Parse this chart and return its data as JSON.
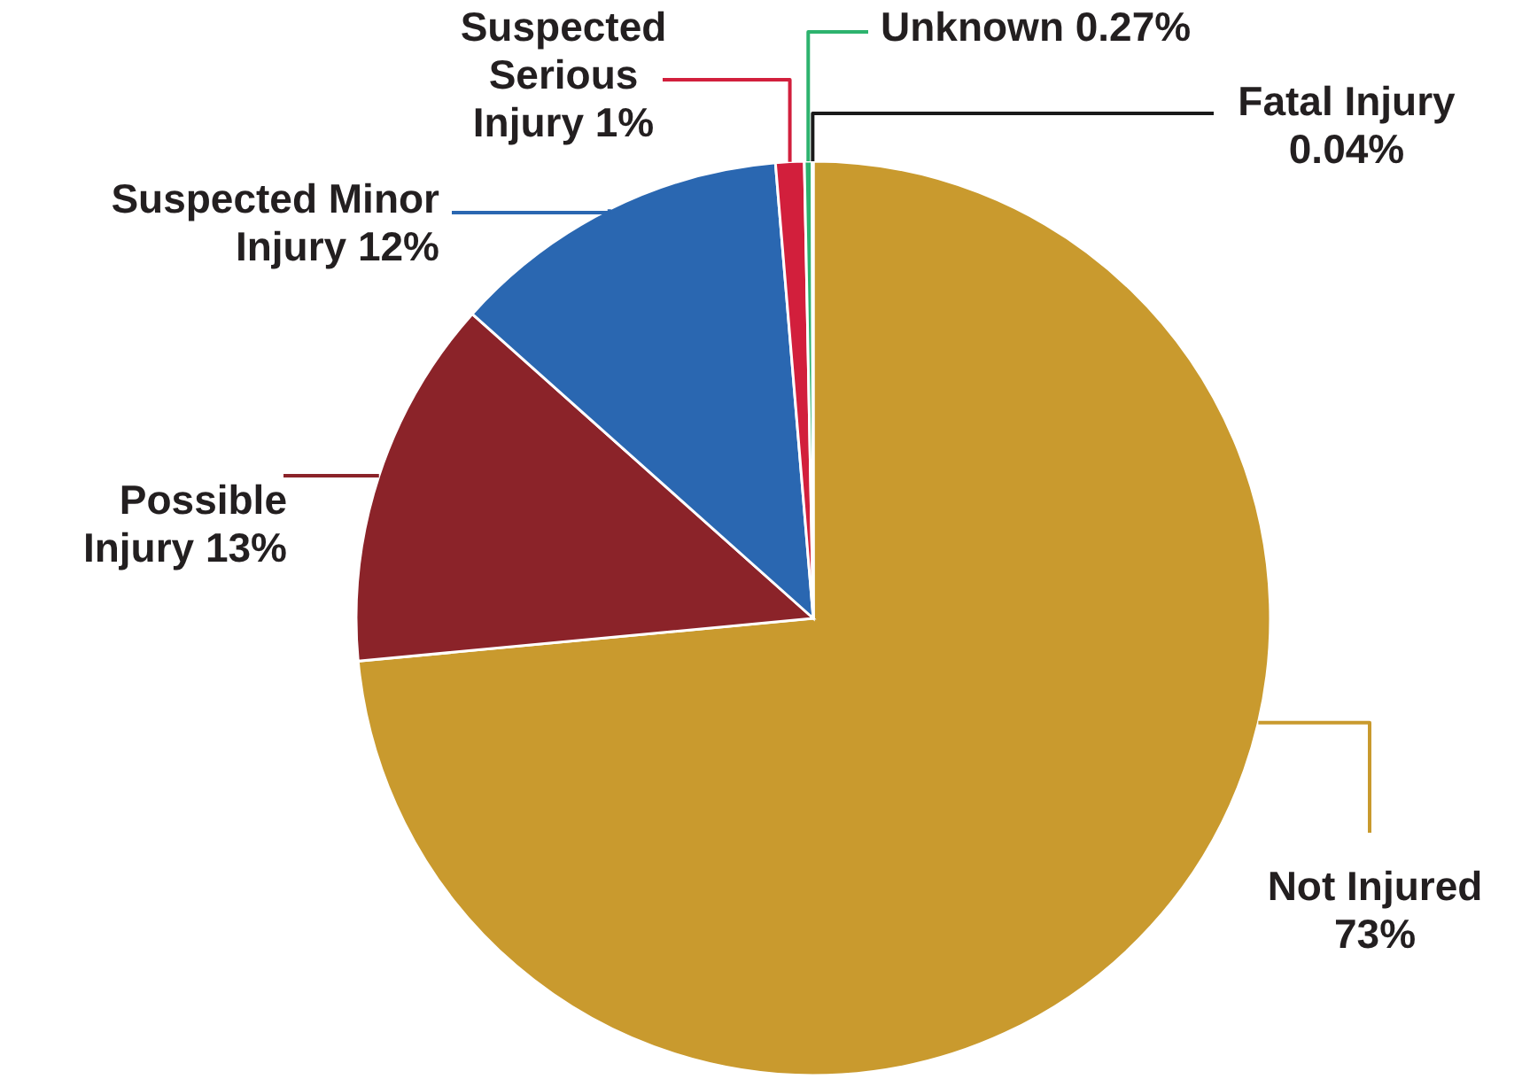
{
  "chart_data": {
    "type": "pie",
    "categories": [
      "Not Injured",
      "Possible Injury",
      "Suspected Minor Injury",
      "Suspected Serious Injury",
      "Unknown",
      "Fatal Injury"
    ],
    "values": [
      73,
      13,
      12,
      1,
      0.27,
      0.04
    ],
    "value_labels": [
      "73%",
      "13%",
      "12%",
      "1%",
      "0.27%",
      "0.04%"
    ],
    "colors": [
      "#c99a2e",
      "#8b2329",
      "#2a67b1",
      "#d21f3c",
      "#2db36e",
      "#1a1a1a"
    ]
  }
}
